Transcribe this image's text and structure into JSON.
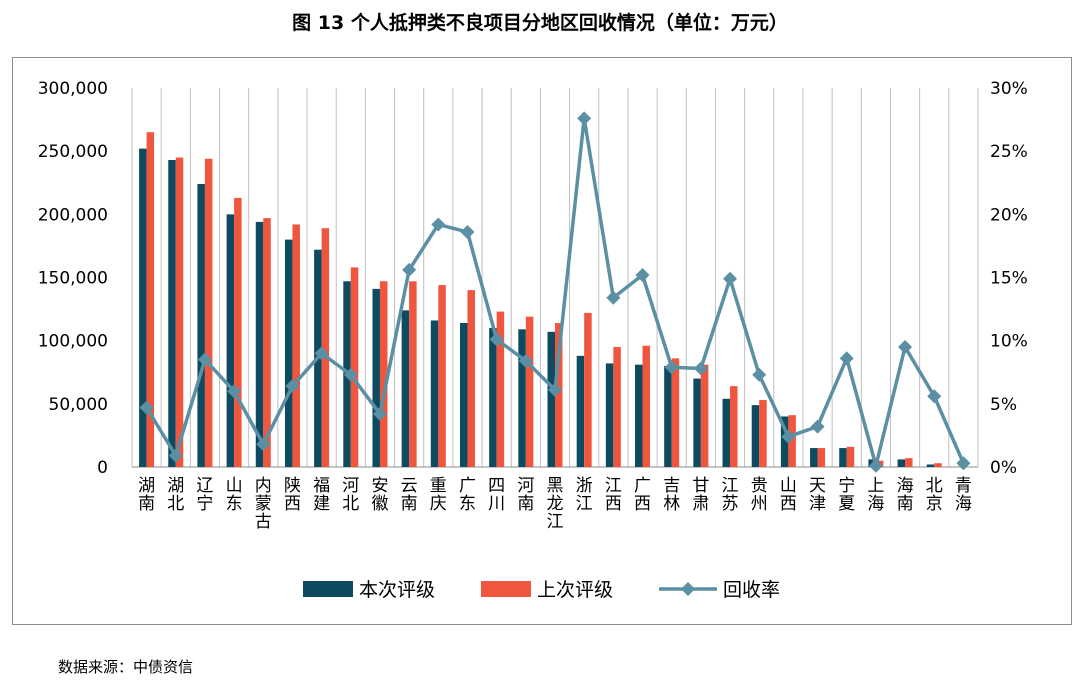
{
  "title": "图 13  个人抵押类不良项目分地区回收情况（单位：万元）",
  "source": "数据来源：中债资信",
  "colors": {
    "current": "#0e4b61",
    "previous": "#f0553e",
    "rate": "#5b8fa3",
    "grid": "#bfbfbf",
    "axis": "#8c8c8c"
  },
  "chart_data": {
    "type": "bar",
    "categories": [
      "湖南",
      "湖北",
      "辽宁",
      "山东",
      "内蒙古",
      "陕西",
      "福建",
      "河北",
      "安徽",
      "云南",
      "重庆",
      "广东",
      "四川",
      "河南",
      "黑龙江",
      "浙江",
      "江西",
      "广西",
      "吉林",
      "甘肃",
      "江苏",
      "贵州",
      "山西",
      "天津",
      "宁夏",
      "上海",
      "海南",
      "北京",
      "青海"
    ],
    "series": [
      {
        "name": "本次评级",
        "axis": "left",
        "type": "bar",
        "values": [
          252000,
          243000,
          224000,
          200000,
          194000,
          180000,
          172000,
          147000,
          141000,
          124000,
          116000,
          114000,
          110000,
          109000,
          107000,
          88000,
          82000,
          81000,
          80000,
          70000,
          54000,
          49000,
          40000,
          15000,
          15000,
          6000,
          6000,
          2000,
          0
        ]
      },
      {
        "name": "上次评级",
        "axis": "left",
        "type": "bar",
        "values": [
          265000,
          245000,
          244000,
          213000,
          197000,
          192000,
          189000,
          158000,
          147000,
          147000,
          144000,
          140000,
          123000,
          119000,
          114000,
          122000,
          95000,
          96000,
          86000,
          81000,
          64000,
          53000,
          41000,
          15000,
          16000,
          5000,
          7000,
          3000,
          0
        ]
      },
      {
        "name": "回收率",
        "axis": "right",
        "type": "line",
        "values": [
          4.7,
          0.9,
          8.5,
          6.0,
          1.8,
          6.4,
          9.0,
          7.3,
          4.2,
          15.6,
          19.2,
          18.6,
          10.1,
          8.4,
          6.1,
          27.6,
          13.4,
          15.2,
          7.9,
          7.8,
          14.9,
          7.3,
          2.4,
          3.2,
          8.6,
          0.1,
          9.5,
          5.6,
          0.3
        ]
      }
    ],
    "y_left": {
      "min": 0,
      "max": 300000,
      "ticks": [
        "0",
        "50,000",
        "100,000",
        "150,000",
        "200,000",
        "250,000",
        "300,000"
      ]
    },
    "y_right": {
      "min": 0,
      "max": 30,
      "ticks": [
        "0%",
        "5%",
        "10%",
        "15%",
        "20%",
        "25%",
        "30%"
      ]
    },
    "grid": "vertical",
    "legend_position": "bottom"
  }
}
